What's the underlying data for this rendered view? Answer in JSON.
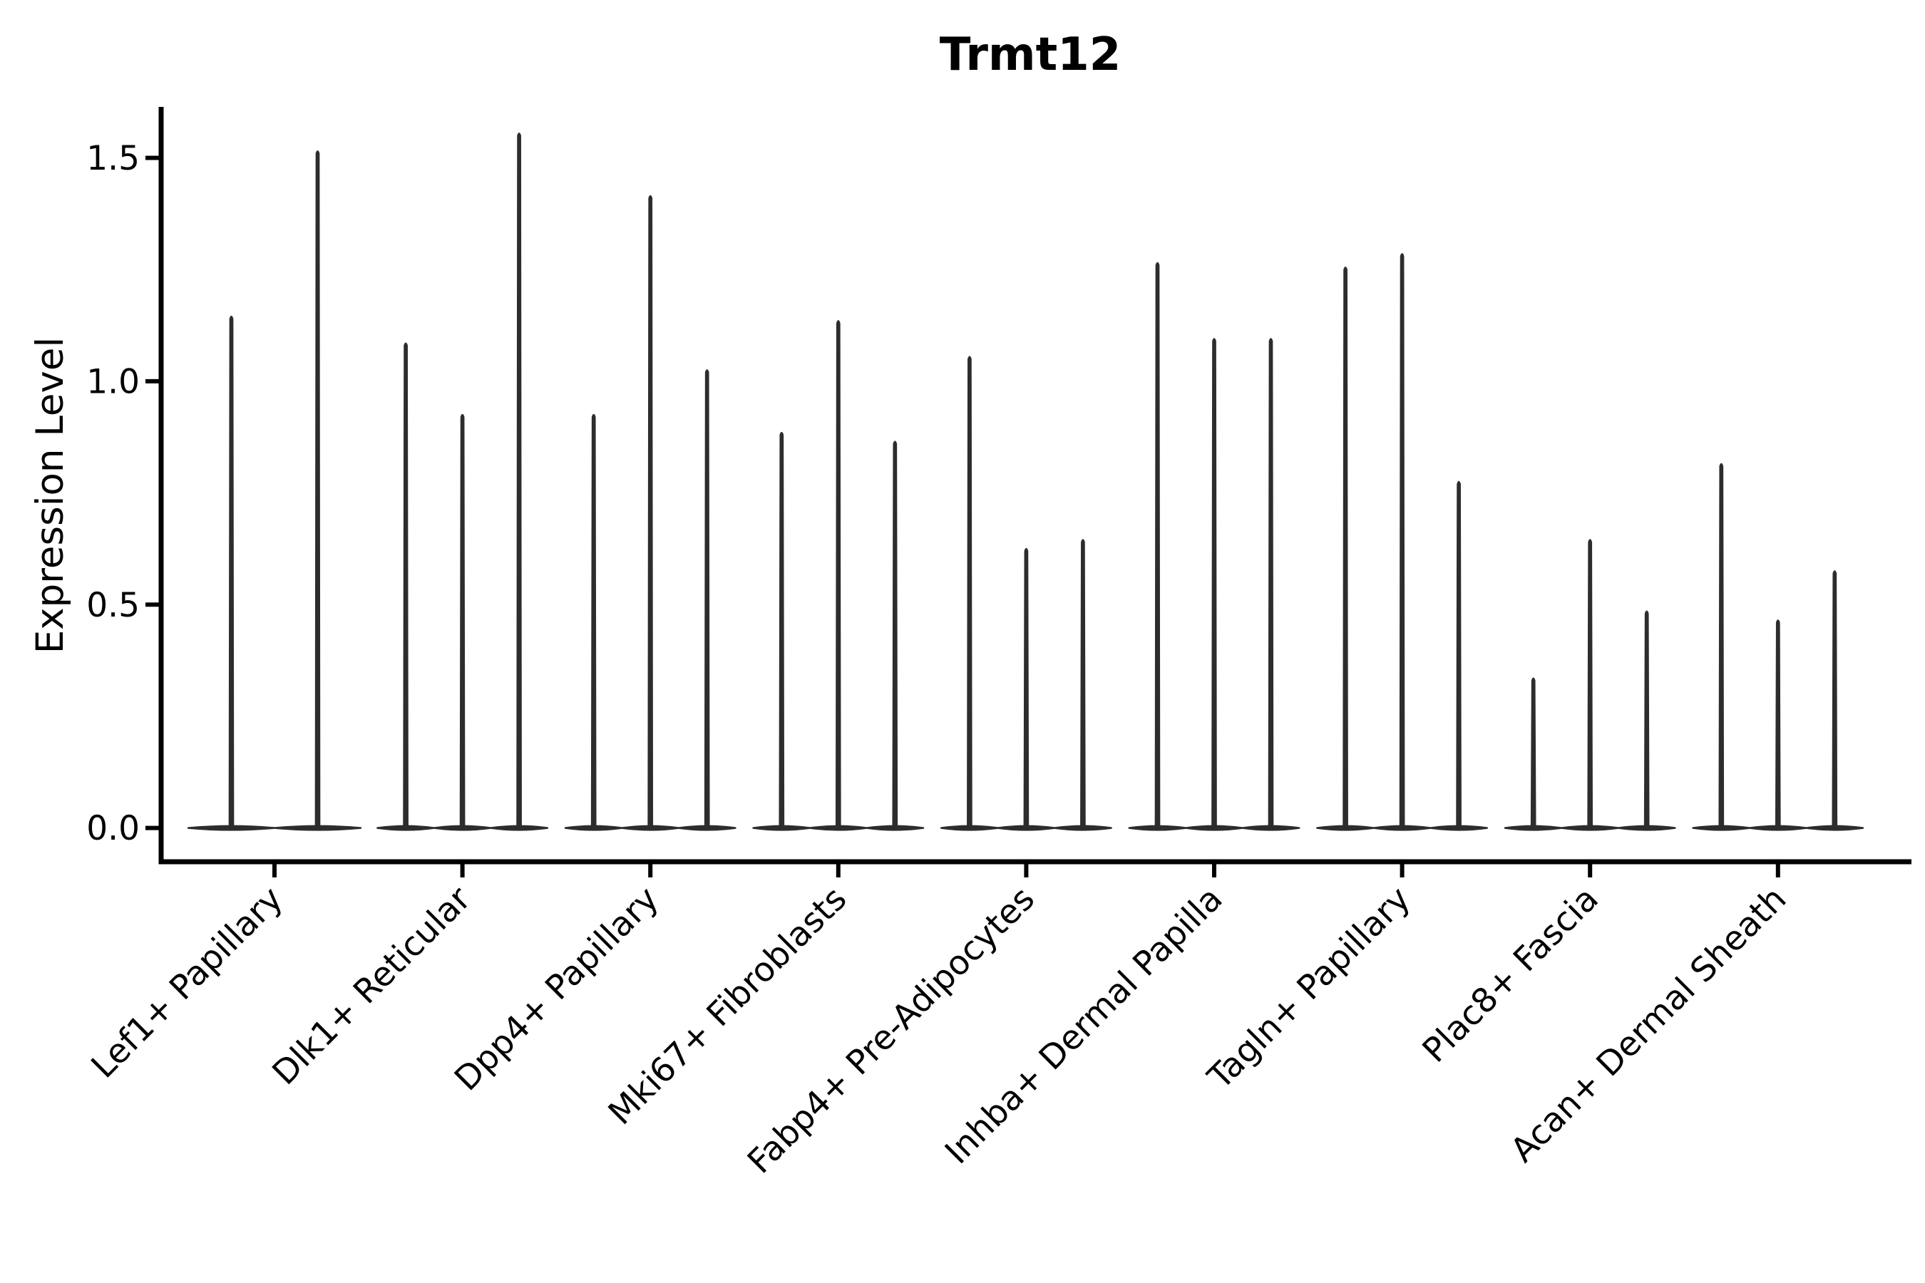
{
  "figure": {
    "background": "#ffffff",
    "axis_color": "#000000",
    "violin_color": "#2d2d2d"
  },
  "chart_data": {
    "type": "violin",
    "title": "Trmt12",
    "xlabel": "",
    "ylabel": "Expression Level",
    "ylim": [
      -0.08,
      1.65
    ],
    "yticks": [
      0.0,
      0.5,
      1.0,
      1.5
    ],
    "grid": false,
    "legend": null,
    "x_tick_label_rotation_deg": 45,
    "categories": [
      "Lef1+ Papillary",
      "Dlk1+ Reticular",
      "Dpp4+ Papillary",
      "Mki67+ Fibroblasts",
      "Fabp4+ Pre-Adipocytes",
      "Inhba+ Dermal Papilla",
      "Tagln+ Papillary",
      "Plac8+ Fascia",
      "Acan+ Dermal Sheath"
    ],
    "series": [
      {
        "category": "Lef1+ Papillary",
        "violin_minima": [
          0,
          0
        ],
        "violin_maxima": [
          1.14,
          1.51
        ]
      },
      {
        "category": "Dlk1+ Reticular",
        "violin_minima": [
          0,
          0,
          0
        ],
        "violin_maxima": [
          1.08,
          0.92,
          1.55
        ]
      },
      {
        "category": "Dpp4+ Papillary",
        "violin_minima": [
          0,
          0,
          0
        ],
        "violin_maxima": [
          0.92,
          1.41,
          1.02
        ]
      },
      {
        "category": "Mki67+ Fibroblasts",
        "violin_minima": [
          0,
          0,
          0
        ],
        "violin_maxima": [
          0.88,
          1.13,
          0.86
        ]
      },
      {
        "category": "Fabp4+ Pre-Adipocytes",
        "violin_minima": [
          0,
          0,
          0
        ],
        "violin_maxima": [
          1.05,
          0.62,
          0.64
        ]
      },
      {
        "category": "Inhba+ Dermal Papilla",
        "violin_minima": [
          0,
          0,
          0
        ],
        "violin_maxima": [
          1.26,
          1.09,
          1.09
        ]
      },
      {
        "category": "Tagln+ Papillary",
        "violin_minima": [
          0,
          0,
          0
        ],
        "violin_maxima": [
          1.25,
          1.28,
          0.77
        ]
      },
      {
        "category": "Plac8+ Fascia",
        "violin_minima": [
          0,
          0,
          0
        ],
        "violin_maxima": [
          0.33,
          0.64,
          0.48
        ]
      },
      {
        "category": "Acan+ Dermal Sheath",
        "violin_minima": [
          0,
          0,
          0
        ],
        "violin_maxima": [
          0.81,
          0.46,
          0.57
        ]
      }
    ],
    "description": "Single-cell expression violin plot: nearly all density lies at 0 (flat lens at baseline) with a thin spike rising to each violin's maximum expression value."
  }
}
